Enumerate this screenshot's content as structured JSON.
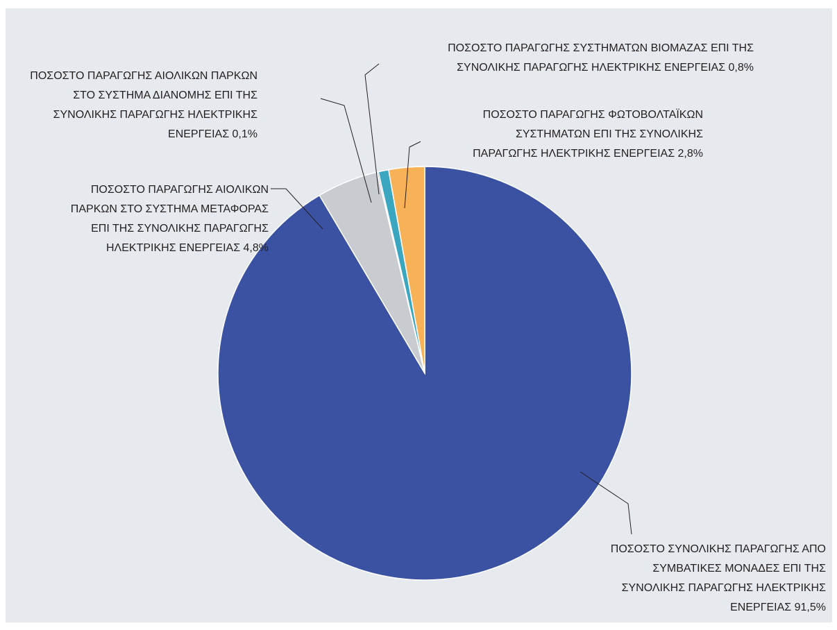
{
  "chart_data": {
    "type": "pie",
    "title": "",
    "start": "12 o'clock",
    "direction": "clockwise",
    "slices": [
      {
        "value": 91.5,
        "color": "#3b52a3",
        "label_lines": [
          "ΠΟΣΟΣΤΟ ΣΥΝΟΛΙΚΗΣ ΠΑΡΑΓΩΓΗΣ ΑΠΟ",
          "ΣΥΜΒΑΤΙΚΕΣ ΜΟΝΑΔΕΣ ΕΠΙ ΤΗΣ",
          "ΣΥΝΟΛΙΚΗΣ ΠΑΡΑΓΩΓΗΣ ΗΛΕΚΤΡΙΚΗΣ",
          "ΕΝΕΡΓΕΙΑΣ 91,5%"
        ]
      },
      {
        "value": 4.8,
        "color": "#c8cbcf",
        "label_lines": [
          "ΠΟΣΟΣΤΟ ΠΑΡΑΓΩΓΗΣ ΑΙΟΛΙΚΩΝ",
          "ΠΑΡΚΩΝ ΣΤΟ ΣΥΣΤΗΜΑ ΜΕΤΑΦΟΡΑΣ",
          "ΕΠΙ ΤΗΣ ΣΥΝΟΛΙΚΗΣ ΠΑΡΑΓΩΓΗΣ",
          "ΗΛΕΚΤΡΙΚΗΣ ΕΝΕΡΓΕΙΑΣ 4,8%"
        ]
      },
      {
        "value": 0.1,
        "color": "#1f2f7a",
        "label_lines": [
          "ΠΟΣΟΣΤΟ ΠΑΡΑΓΩΓΗΣ ΑΙΟΛΙΚΩΝ ΠΑΡΚΩΝ",
          "ΣΤΟ ΣΥΣΤΗΜΑ ΔΙΑΝΟΜΗΣ ΕΠΙ ΤΗΣ",
          "ΣΥΝΟΛΙΚΗΣ ΠΑΡΑΓΩΓΗΣ ΗΛΕΚΤΡΙΚΗΣ",
          "ΕΝΕΡΓΕΙΑΣ 0,1%"
        ]
      },
      {
        "value": 0.8,
        "color": "#3aa6bf",
        "label_lines": [
          "ΠΟΣΟΣΤΟ ΠΑΡΑΓΩΓΗΣ ΣΥΣΤΗΜΑΤΩΝ ΒΙΟΜΑΖΑΣ ΕΠΙ ΤΗΣ",
          "ΣΥΝΟΛΙΚΗΣ ΠΑΡΑΓΩΓΗΣ ΗΛΕΚΤΡΙΚΗΣ ΕΝΕΡΓΕΙΑΣ 0,8%"
        ]
      },
      {
        "value": 2.8,
        "color": "#f7b157",
        "label_lines": [
          "ΠΟΣΟΣΤΟ ΠΑΡΑΓΩΓΗΣ ΦΩΤΟΒΟΛΤΑΪΚΩΝ",
          "ΣΥΣΤΗΜΑΤΩΝ ΕΠΙ ΤΗΣ ΣΥΝΟΛΙΚΗΣ",
          "ΠΑΡΑΓΩΓΗΣ ΗΛΕΚΤΡΙΚΗΣ ΕΝΕΡΓΕΙΑΣ 2,8%"
        ]
      }
    ]
  }
}
